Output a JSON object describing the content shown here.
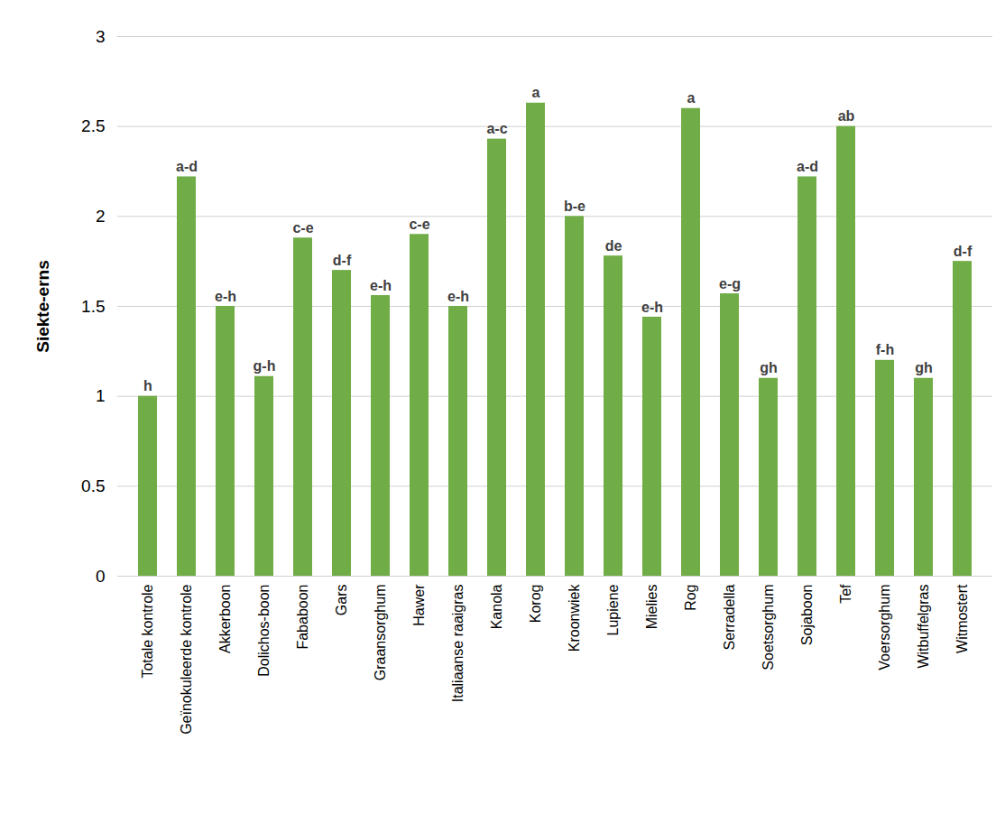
{
  "chart_data": {
    "type": "bar",
    "y_label": "Siekte-erns",
    "categories": [
      "Totale kontrole",
      "Geïnokuleerde kontrole",
      "Akkerboon",
      "Dolichos-boon",
      "Fababoon",
      "Gars",
      "Graansorghum",
      "Hawer",
      "Italiaanse raaigras",
      "Kanola",
      "Korog",
      "Kroonwiek",
      "Lupiene",
      "Mielies",
      "Rog",
      "Serradella",
      "Soetsorghum",
      "Sojaboon",
      "Tef",
      "Voersorghum",
      "Witbuffelgras",
      "Witmostert"
    ],
    "values": [
      1.0,
      2.22,
      1.5,
      1.11,
      1.88,
      1.7,
      1.56,
      1.9,
      1.5,
      2.43,
      2.63,
      2.0,
      1.78,
      1.44,
      2.6,
      1.57,
      1.1,
      2.22,
      2.5,
      1.2,
      1.1,
      1.75
    ],
    "annotations": [
      "h",
      "a-d",
      "e-h",
      "g-h",
      "c-e",
      "d-f",
      "e-h",
      "c-e",
      "e-h",
      "a-c",
      "a",
      "b-e",
      "de",
      "e-h",
      "a",
      "e-g",
      "gh",
      "a-d",
      "ab",
      "f-h",
      "gh",
      "d-f"
    ],
    "color": "#70ad47",
    "ylim": [
      0,
      3
    ],
    "yticks": [
      0,
      0.5,
      1,
      1.5,
      2,
      2.5,
      3
    ],
    "grid": true
  }
}
